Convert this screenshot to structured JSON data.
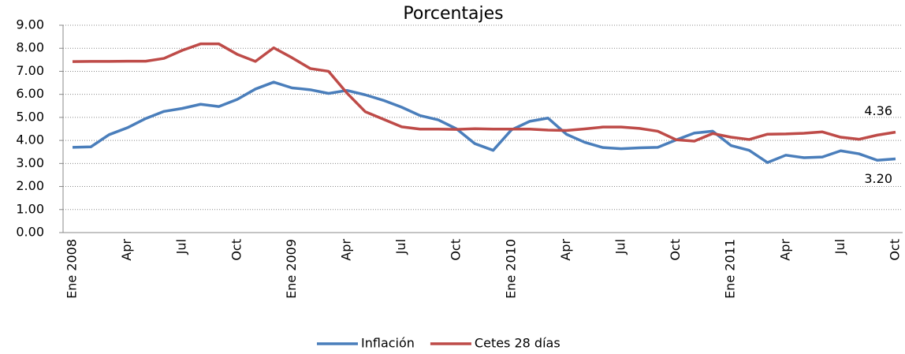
{
  "chart_data": {
    "type": "line",
    "title": "Porcentajes",
    "categories": [
      "Ene 2008",
      null,
      null,
      "Apr",
      null,
      null,
      "Jul",
      null,
      null,
      "Oct",
      null,
      null,
      "Ene 2009",
      null,
      null,
      "Apr",
      null,
      null,
      "Jul",
      null,
      null,
      "Oct",
      null,
      null,
      "Ene 2010",
      null,
      null,
      "Apr",
      null,
      null,
      "Jul",
      null,
      null,
      "Oct",
      null,
      null,
      "Ene 2011",
      null,
      null,
      "Apr",
      null,
      null,
      "Jul",
      null,
      null,
      "Oct"
    ],
    "series": [
      {
        "name": "Inflación",
        "color": "#4a7ebb",
        "values": [
          3.7,
          3.72,
          4.25,
          4.55,
          4.95,
          5.26,
          5.39,
          5.57,
          5.47,
          5.78,
          6.23,
          6.53,
          6.28,
          6.2,
          6.04,
          6.17,
          5.98,
          5.74,
          5.44,
          5.08,
          4.89,
          4.5,
          3.86,
          3.57,
          4.46,
          4.83,
          4.97,
          4.27,
          3.92,
          3.69,
          3.64,
          3.68,
          3.7,
          4.02,
          4.32,
          4.4,
          3.78,
          3.57,
          3.04,
          3.36,
          3.25,
          3.28,
          3.55,
          3.42,
          3.14,
          3.2
        ],
        "value_labels": [
          null,
          null,
          null,
          null,
          null,
          null,
          null,
          null,
          null,
          null,
          null,
          null,
          null,
          null,
          null,
          null,
          null,
          null,
          null,
          null,
          null,
          null,
          null,
          null,
          null,
          null,
          null,
          null,
          null,
          null,
          null,
          null,
          null,
          null,
          null,
          null,
          null,
          null,
          null,
          null,
          null,
          null,
          null,
          null,
          null,
          "3.20"
        ]
      },
      {
        "name": "Cetes 28 días",
        "color": "#be4b48",
        "values": [
          7.42,
          7.43,
          7.43,
          7.44,
          7.44,
          7.56,
          7.91,
          8.19,
          8.19,
          7.74,
          7.43,
          8.02,
          7.59,
          7.12,
          7.0,
          6.06,
          5.25,
          4.92,
          4.59,
          4.49,
          4.49,
          4.48,
          4.51,
          4.49,
          4.49,
          4.49,
          4.45,
          4.43,
          4.5,
          4.58,
          4.58,
          4.52,
          4.4,
          4.03,
          3.97,
          4.3,
          4.14,
          4.04,
          4.27,
          4.28,
          4.31,
          4.37,
          4.14,
          4.05,
          4.23,
          4.36
        ],
        "value_labels": [
          null,
          null,
          null,
          null,
          null,
          null,
          null,
          null,
          null,
          null,
          null,
          null,
          null,
          null,
          null,
          null,
          null,
          null,
          null,
          null,
          null,
          null,
          null,
          null,
          null,
          null,
          null,
          null,
          null,
          null,
          null,
          null,
          null,
          null,
          null,
          null,
          null,
          null,
          null,
          null,
          null,
          null,
          null,
          null,
          null,
          "4.36"
        ]
      }
    ],
    "ylim": [
      0,
      9
    ],
    "yticks": [
      {
        "value": 0,
        "label": "0.00"
      },
      {
        "value": 1,
        "label": "1.00"
      },
      {
        "value": 2,
        "label": "2.00"
      },
      {
        "value": 3,
        "label": "3.00"
      },
      {
        "value": 4,
        "label": "4.00"
      },
      {
        "value": 5,
        "label": "5.00"
      },
      {
        "value": 6,
        "label": "6.00"
      },
      {
        "value": 7,
        "label": "7.00"
      },
      {
        "value": 8,
        "label": "8.00"
      },
      {
        "value": 9,
        "label": "9.00"
      }
    ],
    "grid": true,
    "legend": "bottom"
  }
}
